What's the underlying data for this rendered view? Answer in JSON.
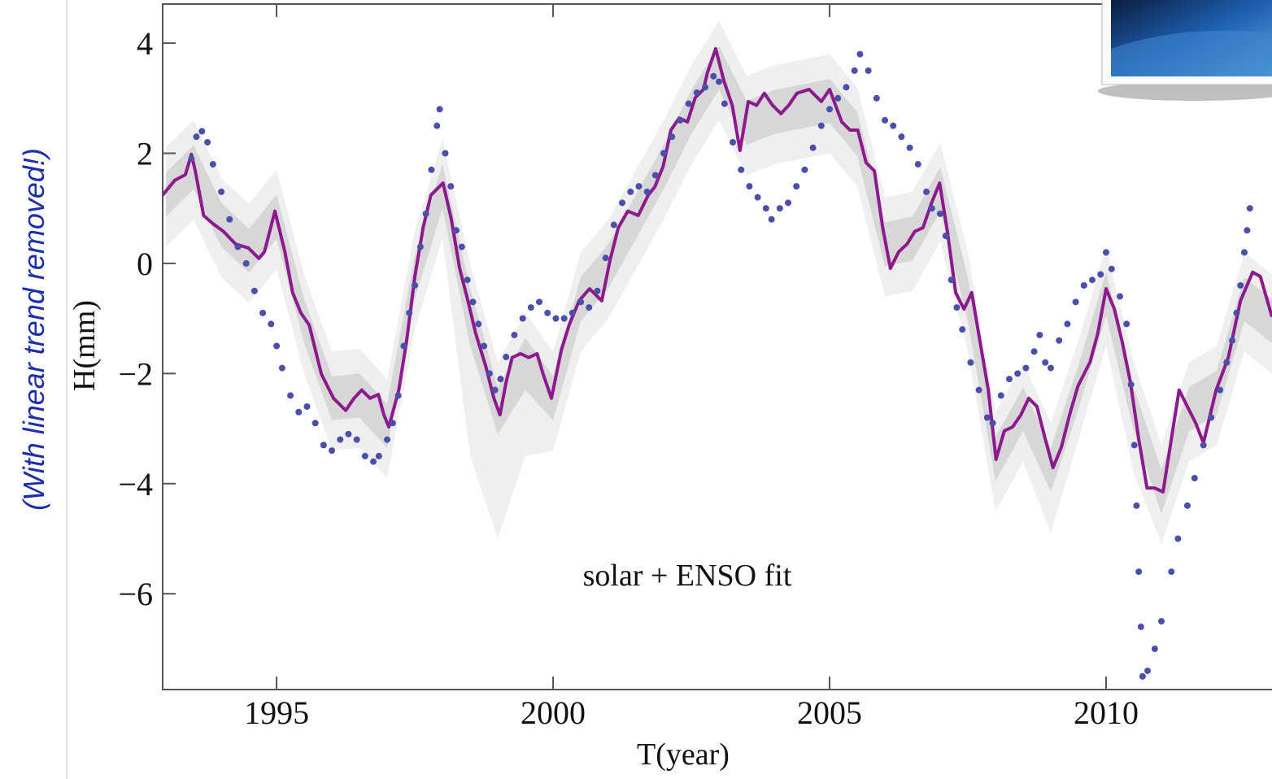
{
  "side_note": "(With linear trend removed!)",
  "chart_data": {
    "type": "line",
    "xlabel": "T(year)",
    "ylabel": "H(mm)",
    "annotations": [
      "solar + ENSO fit"
    ],
    "xlim": [
      1992.94,
      2013.0
    ],
    "ylim": [
      -7.74,
      4.71
    ],
    "xticks": [
      1995,
      2000,
      2005,
      2010
    ],
    "yticks": [
      {
        "value": -6,
        "label": "−6"
      },
      {
        "value": -4,
        "label": "−4"
      },
      {
        "value": -2,
        "label": "−2"
      },
      0,
      2,
      4
    ],
    "bands": [
      {
        "color": "#efefef",
        "x": [
          1993,
          1993.5,
          1994,
          1994.5,
          1995,
          1995.5,
          1996,
          1996.5,
          1997,
          1997.5,
          1998,
          1998.5,
          1999,
          1999.5,
          2000,
          2000.5,
          2001,
          2001.5,
          2002,
          2002.5,
          2003,
          2003.5,
          2004,
          2004.5,
          2005,
          2005.5,
          2006,
          2006.5,
          2007,
          2007.5,
          2008,
          2008.5,
          2009,
          2009.5,
          2010,
          2010.5,
          2011,
          2011.5,
          2012,
          2012.5,
          2013
        ],
        "upper": [
          2.1,
          2.6,
          1.55,
          1.08,
          1.7,
          -0.2,
          -1.6,
          -1.55,
          -2.1,
          0.6,
          2.25,
          0.0,
          -1.8,
          -0.9,
          -1.6,
          0.2,
          0.8,
          1.7,
          2.6,
          3.6,
          4.4,
          3.4,
          3.6,
          3.7,
          3.8,
          3.2,
          1.2,
          1.3,
          2.2,
          0.2,
          -2.7,
          -1.8,
          -2.9,
          -1.4,
          0.3,
          -1.8,
          -3.3,
          -1.8,
          -1.5,
          0.2,
          -0.2
        ],
        "lower": [
          0.3,
          0.8,
          -0.25,
          -0.72,
          -0.1,
          -2.0,
          -3.4,
          -3.35,
          -3.9,
          -1.2,
          0.45,
          -3.5,
          -5.0,
          -3.5,
          -3.4,
          -1.6,
          -1.0,
          -0.1,
          0.8,
          1.8,
          2.6,
          1.6,
          1.8,
          1.9,
          2.0,
          1.4,
          -0.6,
          -0.5,
          0.4,
          -1.6,
          -4.5,
          -3.6,
          -4.9,
          -3.2,
          -1.5,
          -3.8,
          -5.1,
          -3.6,
          -3.3,
          -1.6,
          -2.0
        ]
      },
      {
        "color": "#d7d7d7",
        "x": [
          1993,
          1993.5,
          1994,
          1994.5,
          1995,
          1995.5,
          1996,
          1996.5,
          1997,
          1997.5,
          1998,
          1998.5,
          1999,
          1999.5,
          2000,
          2000.5,
          2001,
          2001.5,
          2002,
          2002.5,
          2003,
          2003.5,
          2004,
          2004.5,
          2005,
          2005.5,
          2006,
          2006.5,
          2007,
          2007.5,
          2008,
          2008.5,
          2009,
          2009.5,
          2010,
          2010.5,
          2011,
          2011.5,
          2012,
          2012.5,
          2013
        ],
        "upper": [
          1.65,
          2.15,
          1.1,
          0.63,
          1.25,
          -0.65,
          -2.05,
          -2.0,
          -2.55,
          0.15,
          1.8,
          -0.45,
          -2.25,
          -1.35,
          -2.05,
          -0.25,
          0.35,
          1.25,
          2.15,
          3.15,
          3.95,
          2.95,
          3.15,
          3.25,
          3.35,
          2.75,
          0.75,
          0.85,
          1.75,
          -0.25,
          -3.15,
          -2.25,
          -3.35,
          -1.85,
          -0.15,
          -2.25,
          -3.75,
          -2.25,
          -1.95,
          -0.25,
          -0.65
        ],
        "lower": [
          0.85,
          1.35,
          0.3,
          -0.17,
          0.45,
          -1.45,
          -2.85,
          -2.8,
          -3.35,
          -0.65,
          1.0,
          -1.5,
          -3.1,
          -2.3,
          -2.85,
          -1.05,
          -0.45,
          0.45,
          1.35,
          2.35,
          3.15,
          2.15,
          2.35,
          2.45,
          2.55,
          1.95,
          -0.05,
          0.05,
          0.95,
          -1.05,
          -3.95,
          -3.05,
          -4.15,
          -2.65,
          -0.95,
          -3.05,
          -4.55,
          -3.05,
          -2.75,
          -1.05,
          -1.45
        ]
      }
    ],
    "series": [
      {
        "style": "line",
        "color": "#8c1a8c",
        "x": [
          1992.94,
          1993.16,
          1993.35,
          1993.46,
          1993.53,
          1993.68,
          1993.85,
          1994.04,
          1994.26,
          1994.49,
          1994.68,
          1994.78,
          1994.97,
          1995.15,
          1995.29,
          1995.44,
          1995.59,
          1995.81,
          1996.03,
          1996.25,
          1996.4,
          1996.54,
          1996.69,
          1996.84,
          1996.94,
          1997.03,
          1997.21,
          1997.35,
          1997.5,
          1997.65,
          1997.79,
          1998.01,
          1998.16,
          1998.31,
          1998.46,
          1998.6,
          1998.78,
          1998.93,
          1999.04,
          1999.15,
          1999.26,
          1999.41,
          1999.56,
          1999.71,
          1999.82,
          1999.97,
          2000.15,
          2000.29,
          2000.47,
          2000.66,
          2000.88,
          2001.03,
          2001.18,
          2001.35,
          2001.54,
          2001.72,
          2001.84,
          2001.99,
          2002.13,
          2002.28,
          2002.43,
          2002.57,
          2002.72,
          2002.79,
          2002.94,
          2003.09,
          2003.24,
          2003.38,
          2003.53,
          2003.68,
          2003.82,
          2003.97,
          2004.12,
          2004.26,
          2004.41,
          2004.63,
          2004.85,
          2005.0,
          2005.22,
          2005.37,
          2005.51,
          2005.66,
          2005.81,
          2005.96,
          2006.1,
          2006.25,
          2006.4,
          2006.54,
          2006.69,
          2006.84,
          2006.99,
          2007.13,
          2007.28,
          2007.43,
          2007.57,
          2007.72,
          2007.87,
          2008.01,
          2008.16,
          2008.31,
          2008.46,
          2008.6,
          2008.75,
          2008.9,
          2009.04,
          2009.19,
          2009.34,
          2009.49,
          2009.71,
          2009.85,
          2010.0,
          2010.15,
          2010.29,
          2010.44,
          2010.59,
          2010.74,
          2010.88,
          2011.03,
          2011.18,
          2011.32,
          2011.47,
          2011.62,
          2011.76,
          2011.99,
          2012.21,
          2012.43,
          2012.65,
          2012.79,
          2013.0
        ],
        "values": [
          1.24,
          1.51,
          1.61,
          1.98,
          1.68,
          0.87,
          0.72,
          0.58,
          0.35,
          0.28,
          0.09,
          0.21,
          0.95,
          0.21,
          -0.53,
          -0.9,
          -1.12,
          -2.01,
          -2.45,
          -2.67,
          -2.45,
          -2.3,
          -2.45,
          -2.38,
          -2.75,
          -2.97,
          -2.3,
          -1.42,
          -0.24,
          0.65,
          1.24,
          1.46,
          0.8,
          -0.09,
          -0.68,
          -1.27,
          -1.86,
          -2.45,
          -2.75,
          -2.16,
          -1.71,
          -1.64,
          -1.71,
          -1.64,
          -2.01,
          -2.45,
          -1.57,
          -1.12,
          -0.68,
          -0.46,
          -0.68,
          0.06,
          0.65,
          0.95,
          0.87,
          1.24,
          1.39,
          1.76,
          2.42,
          2.64,
          2.57,
          3.01,
          3.16,
          3.46,
          3.9,
          3.31,
          2.87,
          2.05,
          2.94,
          2.87,
          3.09,
          2.87,
          2.72,
          2.87,
          3.09,
          3.16,
          2.94,
          3.16,
          2.57,
          2.42,
          2.42,
          1.83,
          1.68,
          0.65,
          -0.09,
          0.21,
          0.35,
          0.58,
          0.65,
          1.09,
          1.46,
          0.58,
          -0.53,
          -0.83,
          -0.53,
          -1.42,
          -2.3,
          -3.56,
          -3.04,
          -2.97,
          -2.75,
          -2.45,
          -2.6,
          -3.19,
          -3.71,
          -3.34,
          -2.75,
          -2.23,
          -1.79,
          -1.27,
          -0.46,
          -0.83,
          -1.42,
          -2.16,
          -3.19,
          -4.08,
          -4.08,
          -4.15,
          -3.19,
          -2.3,
          -2.6,
          -2.9,
          -3.26,
          -2.3,
          -1.71,
          -0.68,
          -0.16,
          -0.24,
          -0.97
        ]
      },
      {
        "style": "points",
        "color": "#4b4faa",
        "x": [
          1993.46,
          1993.55,
          1993.65,
          1993.75,
          1993.85,
          1994.0,
          1994.15,
          1994.3,
          1994.45,
          1994.6,
          1994.75,
          1994.9,
          1995.0,
          1995.1,
          1995.25,
          1995.4,
          1995.55,
          1995.7,
          1995.85,
          1996.0,
          1996.15,
          1996.3,
          1996.45,
          1996.6,
          1996.75,
          1996.85,
          1997.0,
          1997.1,
          1997.2,
          1997.3,
          1997.4,
          1997.5,
          1997.6,
          1997.7,
          1997.8,
          1997.9,
          1997.95,
          1998.05,
          1998.15,
          1998.25,
          1998.35,
          1998.45,
          1998.55,
          1998.65,
          1998.75,
          1998.85,
          1998.95,
          1999.05,
          1999.15,
          1999.3,
          1999.45,
          1999.6,
          1999.75,
          1999.9,
          2000.05,
          2000.2,
          2000.35,
          2000.5,
          2000.65,
          2000.8,
          2000.95,
          2001.1,
          2001.25,
          2001.4,
          2001.55,
          2001.7,
          2001.85,
          2002.0,
          2002.15,
          2002.3,
          2002.45,
          2002.6,
          2002.75,
          2002.9,
          2003.0,
          2003.1,
          2003.25,
          2003.4,
          2003.55,
          2003.7,
          2003.85,
          2003.95,
          2004.1,
          2004.25,
          2004.4,
          2004.55,
          2004.7,
          2004.85,
          2005.0,
          2005.15,
          2005.3,
          2005.45,
          2005.55,
          2005.7,
          2005.85,
          2006.0,
          2006.15,
          2006.3,
          2006.45,
          2006.6,
          2006.75,
          2006.85,
          2007.0,
          2007.1,
          2007.2,
          2007.3,
          2007.4,
          2007.55,
          2007.7,
          2007.85,
          2007.95,
          2008.1,
          2008.25,
          2008.4,
          2008.55,
          2008.7,
          2008.8,
          2008.9,
          2009.0,
          2009.15,
          2009.3,
          2009.45,
          2009.6,
          2009.75,
          2009.9,
          2010.0,
          2010.1,
          2010.25,
          2010.37,
          2010.45,
          2010.51,
          2010.55,
          2010.59,
          2010.63,
          2010.66,
          2010.75,
          2010.88,
          2011.0,
          2011.18,
          2011.3,
          2011.47,
          2011.6,
          2011.76,
          2011.9,
          2012.06,
          2012.18,
          2012.28,
          2012.36,
          2012.43,
          2012.5,
          2012.55,
          2012.6
        ],
        "values": [
          1.9,
          2.3,
          2.4,
          2.2,
          1.8,
          1.3,
          0.8,
          0.3,
          0.0,
          -0.5,
          -0.9,
          -1.1,
          -1.5,
          -1.9,
          -2.4,
          -2.7,
          -2.6,
          -2.9,
          -3.3,
          -3.4,
          -3.2,
          -3.1,
          -3.2,
          -3.5,
          -3.6,
          -3.5,
          -3.2,
          -2.9,
          -2.4,
          -1.5,
          -0.9,
          -0.4,
          0.3,
          0.9,
          1.7,
          2.5,
          2.8,
          2.0,
          1.4,
          0.6,
          0.3,
          -0.3,
          -0.7,
          -1.1,
          -1.5,
          -2.0,
          -2.3,
          -2.1,
          -1.7,
          -1.3,
          -1.0,
          -0.8,
          -0.7,
          -0.9,
          -1.0,
          -1.0,
          -0.9,
          -0.7,
          -0.8,
          -0.5,
          0.1,
          0.7,
          1.1,
          1.3,
          1.4,
          1.3,
          1.6,
          2.0,
          2.3,
          2.6,
          2.9,
          3.1,
          3.2,
          3.4,
          3.3,
          2.9,
          2.2,
          1.7,
          1.4,
          1.2,
          1.0,
          0.8,
          1.0,
          1.1,
          1.4,
          1.7,
          2.1,
          2.5,
          2.8,
          3.0,
          3.2,
          3.5,
          3.8,
          3.5,
          3.0,
          2.6,
          2.5,
          2.3,
          2.1,
          1.8,
          1.3,
          1.0,
          0.9,
          0.5,
          -0.3,
          -0.8,
          -1.2,
          -1.8,
          -2.3,
          -2.8,
          -2.9,
          -2.4,
          -2.1,
          -2.0,
          -1.9,
          -1.6,
          -1.3,
          -1.8,
          -1.9,
          -1.4,
          -1.1,
          -0.7,
          -0.4,
          -0.3,
          -0.2,
          0.2,
          -0.1,
          -0.6,
          -1.1,
          -2.2,
          -3.3,
          -4.4,
          -5.6,
          -6.6,
          -7.5,
          -7.4,
          -7.0,
          -6.5,
          -5.6,
          -5.0,
          -4.4,
          -3.9,
          -3.3,
          -2.8,
          -2.3,
          -1.8,
          -1.4,
          -0.9,
          -0.4,
          0.2,
          0.6,
          1.0
        ]
      }
    ]
  }
}
